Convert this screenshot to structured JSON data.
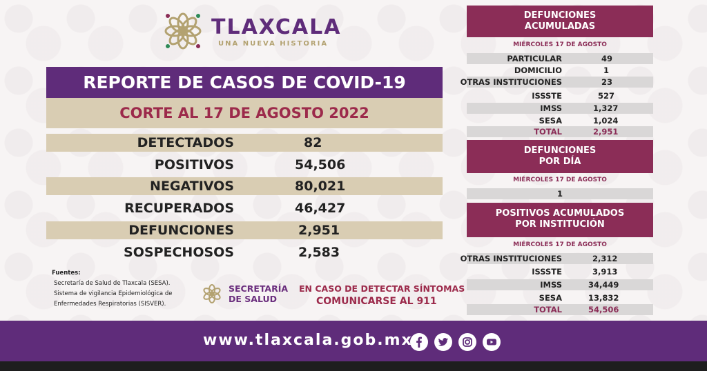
{
  "brand": {
    "title": "TLAXCALA",
    "subtitle": "UNA NUEVA HISTORIA",
    "colors": {
      "purple": "#5f2c7a",
      "wine": "#8b2d57",
      "tan": "#d9cdb3",
      "gold": "#b3a271"
    }
  },
  "report": {
    "title": "REPORTE DE CASOS DE COVID-19",
    "corte": "CORTE AL 17 DE AGOSTO 2022",
    "stats": [
      {
        "label": "DETECTADOS",
        "value": "82"
      },
      {
        "label": "POSITIVOS",
        "value": "54,506"
      },
      {
        "label": "NEGATIVOS",
        "value": "80,021"
      },
      {
        "label": "RECUPERADOS",
        "value": "46,427"
      },
      {
        "label": "DEFUNCIONES",
        "value": "2,951"
      },
      {
        "label": "SOSPECHOSOS",
        "value": "2,583"
      }
    ]
  },
  "fuentes": {
    "heading": "Fuentes:",
    "lines": [
      "Secretaría de Salud de Tlaxcala (SESA).",
      "Sistema de vigilancia Epidemiológica de",
      "Enfermedades Respiratorias (SISVER)."
    ]
  },
  "secretaria": {
    "line1": "SECRETARÍA",
    "line2": "DE SALUD"
  },
  "aviso": {
    "line1": "EN CASO DE DETECTAR SÍNTOMAS",
    "line2": "COMUNICARSE AL 911"
  },
  "defunciones_acumuladas": {
    "title1": "DEFUNCIONES",
    "title2": "ACUMULADAS",
    "date": "MIÉRCOLES 17 DE AGOSTO",
    "rows": [
      {
        "label": "PARTICULAR",
        "value": "49"
      },
      {
        "label": "DOMICILIO",
        "value": "1"
      },
      {
        "label": "OTRAS INSTITUCIONES",
        "value": "23"
      },
      {
        "label": "ISSSTE",
        "value": "527"
      },
      {
        "label": "IMSS",
        "value": "1,327"
      },
      {
        "label": "SESA",
        "value": "1,024"
      }
    ],
    "total_label": "TOTAL",
    "total_value": "2,951"
  },
  "defunciones_dia": {
    "title1": "DEFUNCIONES",
    "title2": "POR DÍA",
    "date": "MIÉRCOLES 17 DE AGOSTO",
    "value": "1"
  },
  "positivos_institucion": {
    "title1": "POSITIVOS ACUMULADOS",
    "title2": "POR INSTITUCIÓN",
    "date": "MIÉRCOLES 17 DE AGOSTO",
    "rows": [
      {
        "label": "OTRAS INSTITUCIONES",
        "value": "2,312"
      },
      {
        "label": "ISSSTE",
        "value": "3,913"
      },
      {
        "label": "IMSS",
        "value": "34,449"
      },
      {
        "label": "SESA",
        "value": "13,832"
      }
    ],
    "total_label": "TOTAL",
    "total_value": "54,506"
  },
  "footer": {
    "url": "www.tlaxcala.gob.mx",
    "social": [
      "facebook-icon",
      "twitter-icon",
      "instagram-icon",
      "youtube-icon"
    ]
  }
}
